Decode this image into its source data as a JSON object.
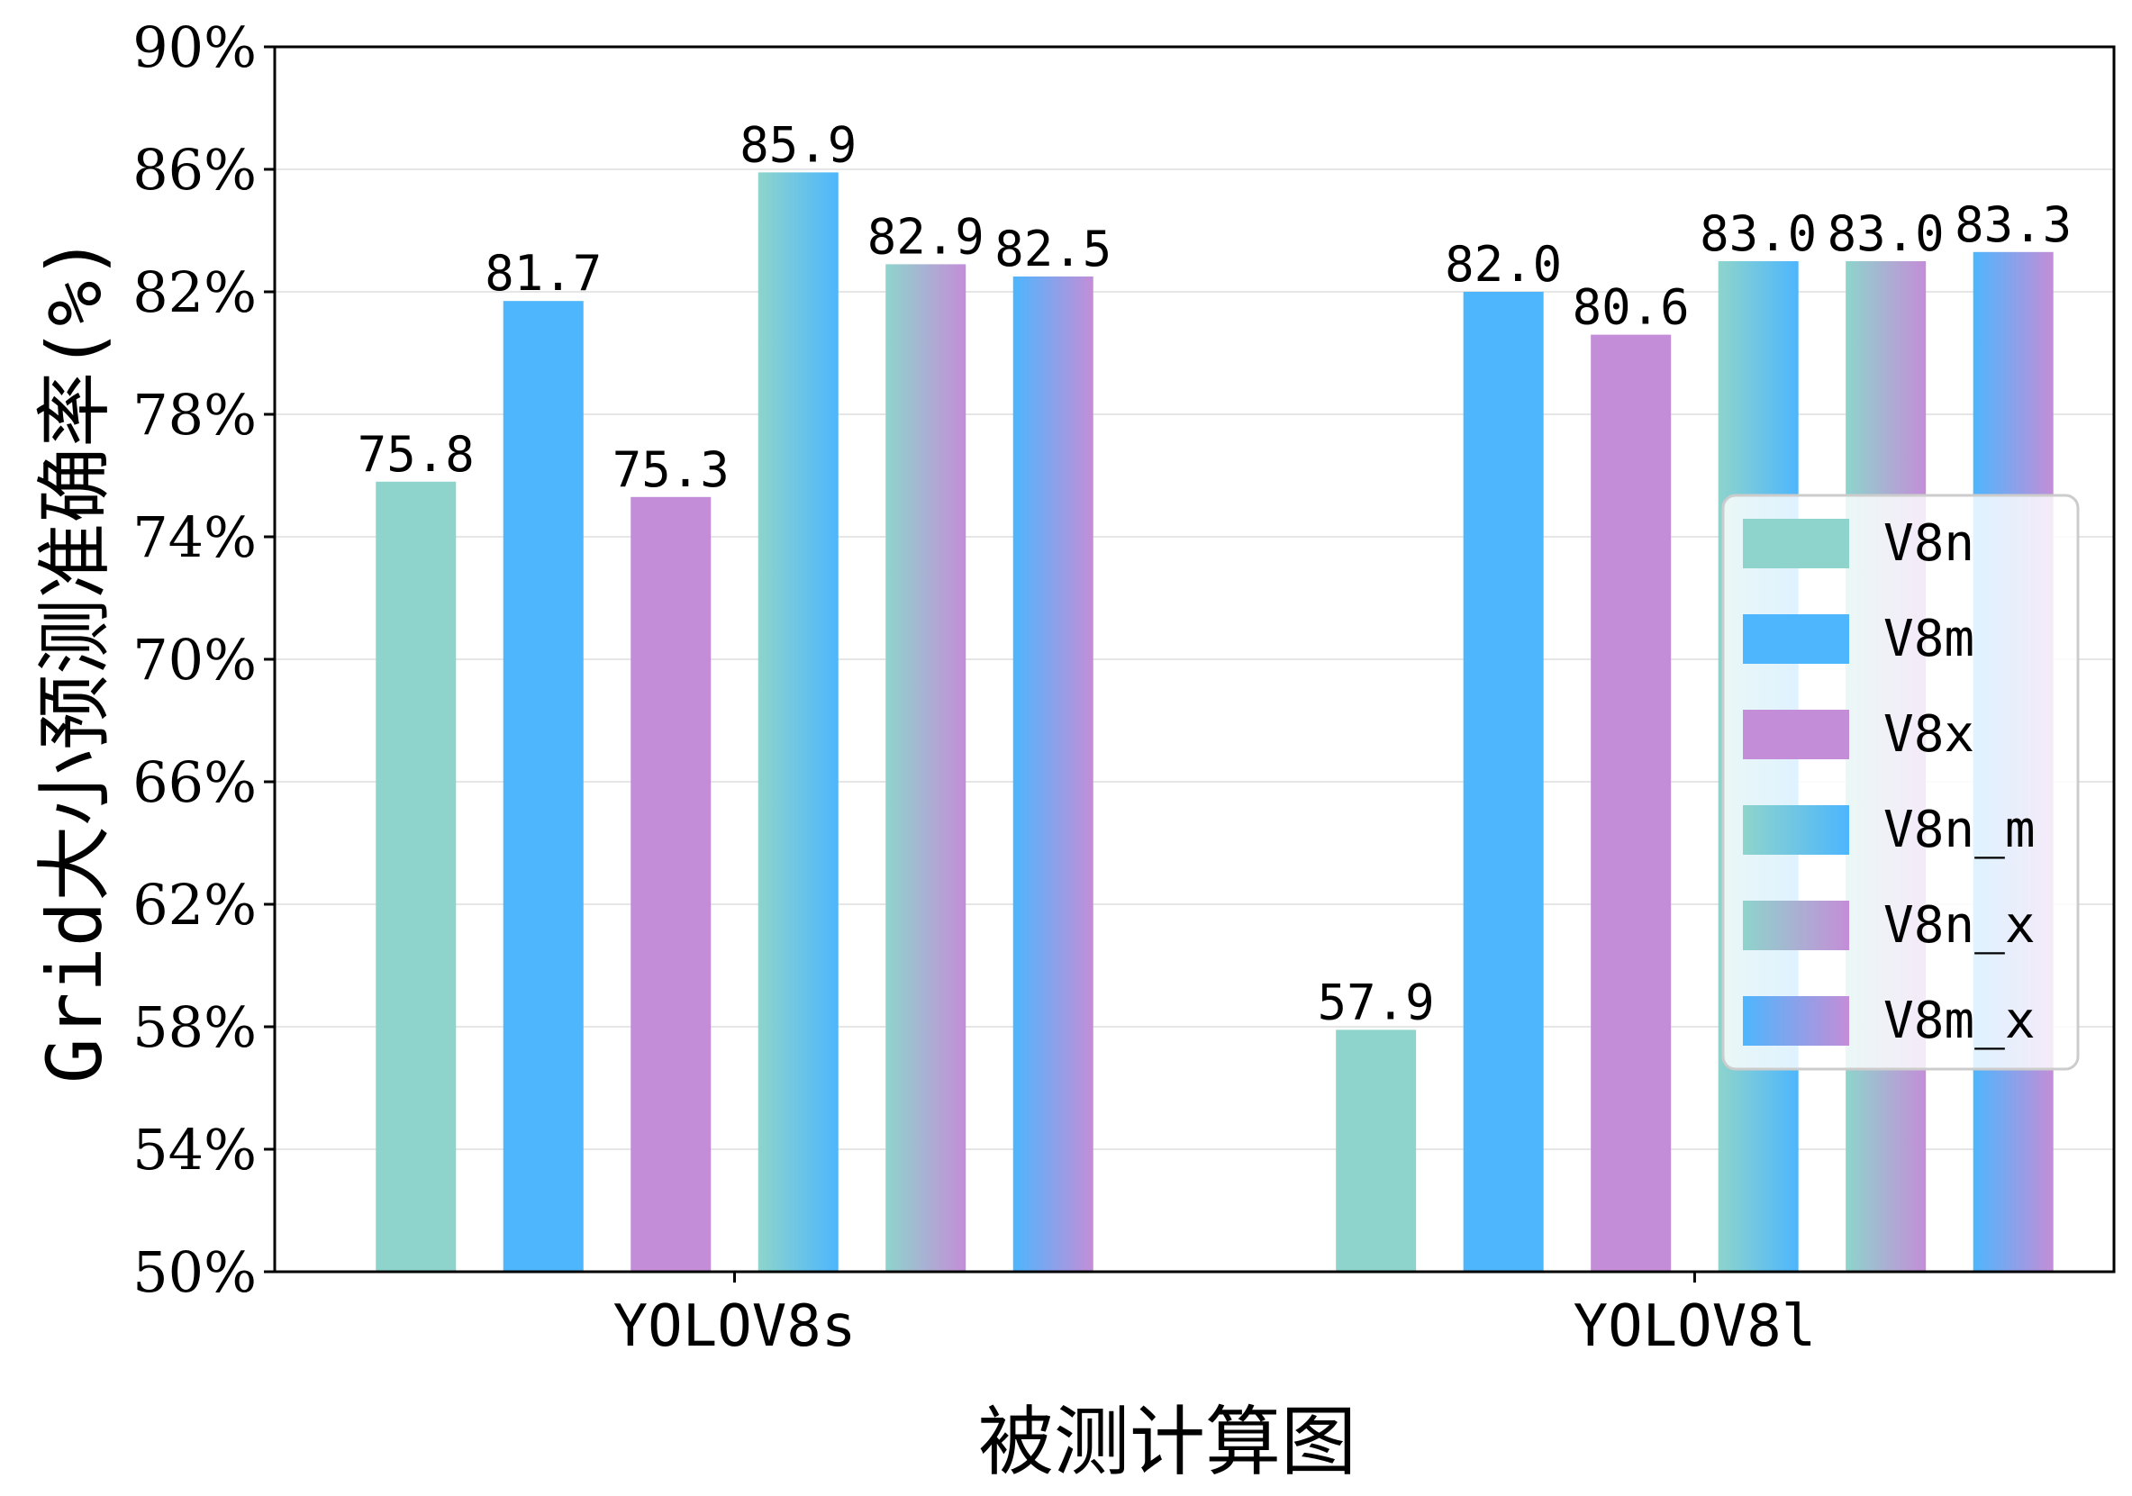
{
  "chart_data": {
    "type": "bar",
    "title": "",
    "xlabel": "被测计算图",
    "ylabel": "Grid大小预测准确率(%)",
    "ylim": [
      50,
      90
    ],
    "yticks": [
      "50%",
      "54%",
      "58%",
      "62%",
      "66%",
      "70%",
      "74%",
      "78%",
      "82%",
      "86%",
      "90%"
    ],
    "categories": [
      "YOLOV8s",
      "YOLOV8l"
    ],
    "series": [
      {
        "name": "V8n",
        "values": [
          75.8,
          57.9
        ],
        "labels": [
          "75.8",
          "57.9"
        ],
        "color_start": "#8ED4CC",
        "color_end": "#8ED4CC"
      },
      {
        "name": "V8m",
        "values": [
          81.7,
          82.0
        ],
        "labels": [
          "81.7",
          "82.0"
        ],
        "color_start": "#4DB6FD",
        "color_end": "#4DB6FD"
      },
      {
        "name": "V8x",
        "values": [
          75.3,
          80.6
        ],
        "labels": [
          "75.3",
          "80.6"
        ],
        "color_start": "#C48DD8",
        "color_end": "#C48DD8"
      },
      {
        "name": "V8n_m",
        "values": [
          85.9,
          83.0
        ],
        "labels": [
          "85.9",
          "83.0"
        ],
        "color_start": "#8ED4CC",
        "color_end": "#4DB6FD"
      },
      {
        "name": "V8n_x",
        "values": [
          82.9,
          83.0
        ],
        "labels": [
          "82.9",
          "83.0"
        ],
        "color_start": "#8ED4CC",
        "color_end": "#C48DD8"
      },
      {
        "name": "V8m_x",
        "values": [
          82.5,
          83.3
        ],
        "labels": [
          "82.5",
          "83.3"
        ],
        "color_start": "#4DB6FD",
        "color_end": "#C48DD8"
      }
    ],
    "grid": true,
    "legend_position": "right"
  },
  "colors": {
    "grid": "#e6e6e6",
    "axis": "#000000"
  }
}
